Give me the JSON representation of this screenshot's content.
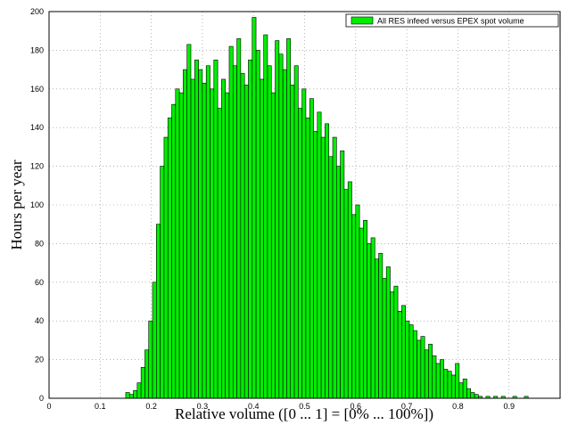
{
  "chart_data": {
    "type": "histogram",
    "x_label": "Relative volume ([0 ... 1] = [0% ... 100%])",
    "y_label": "Hours per year",
    "series": [
      {
        "name": "All RES infeed versus EPEX spot volume",
        "color": "#00ee00",
        "bins": [
          0.15,
          0.1575,
          0.165,
          0.1725,
          0.18,
          0.1875,
          0.195,
          0.2025,
          0.21,
          0.2175,
          0.225,
          0.2325,
          0.24,
          0.2475,
          0.255,
          0.2625,
          0.27,
          0.2775,
          0.285,
          0.2925,
          0.3,
          0.3075,
          0.315,
          0.3225,
          0.33,
          0.3375,
          0.345,
          0.3525,
          0.36,
          0.3675,
          0.375,
          0.3825,
          0.39,
          0.3975,
          0.405,
          0.4125,
          0.42,
          0.4275,
          0.435,
          0.4425,
          0.45,
          0.4575,
          0.465,
          0.4725,
          0.48,
          0.4875,
          0.495,
          0.5025,
          0.51,
          0.5175,
          0.525,
          0.5325,
          0.54,
          0.5475,
          0.555,
          0.5625,
          0.57,
          0.5775,
          0.585,
          0.5925,
          0.6,
          0.6075,
          0.615,
          0.6225,
          0.63,
          0.6375,
          0.645,
          0.6525,
          0.66,
          0.6675,
          0.675,
          0.6825,
          0.69,
          0.6975,
          0.705,
          0.7125,
          0.72,
          0.7275,
          0.735,
          0.7425,
          0.75,
          0.7575,
          0.765,
          0.7725,
          0.78,
          0.7875,
          0.795,
          0.8025,
          0.81,
          0.8175,
          0.825,
          0.8325,
          0.84,
          0.8475,
          0.855,
          0.8625,
          0.87,
          0.8775,
          0.885,
          0.8925,
          0.9,
          0.9075,
          0.915,
          0.9225,
          0.93,
          0.9375,
          0.945,
          0.9525,
          0.96
        ],
        "values": [
          3,
          2,
          4,
          8,
          16,
          25,
          40,
          60,
          90,
          120,
          135,
          145,
          152,
          160,
          158,
          170,
          183,
          165,
          175,
          170,
          163,
          172,
          160,
          175,
          150,
          165,
          158,
          182,
          172,
          186,
          168,
          162,
          175,
          197,
          180,
          165,
          188,
          172,
          158,
          185,
          178,
          170,
          186,
          162,
          172,
          150,
          160,
          145,
          155,
          138,
          148,
          135,
          142,
          125,
          135,
          120,
          128,
          108,
          112,
          95,
          100,
          88,
          92,
          80,
          83,
          72,
          75,
          62,
          68,
          55,
          58,
          45,
          48,
          40,
          38,
          35,
          30,
          32,
          25,
          28,
          22,
          18,
          20,
          15,
          14,
          12,
          18,
          8,
          10,
          5,
          3,
          2,
          1,
          0,
          1,
          0,
          1,
          0,
          1,
          0,
          0,
          1,
          0,
          0,
          1,
          0,
          0,
          0
        ]
      }
    ],
    "xlim": [
      0,
      1
    ],
    "ylim": [
      0,
      200
    ],
    "xticks": [
      0,
      0.1,
      0.2,
      0.3,
      0.4,
      0.5,
      0.6,
      0.7,
      0.8,
      0.9
    ],
    "yticks": [
      0,
      20,
      40,
      60,
      80,
      100,
      120,
      140,
      160,
      180,
      200
    ],
    "grid": true,
    "legend": "northeast"
  }
}
